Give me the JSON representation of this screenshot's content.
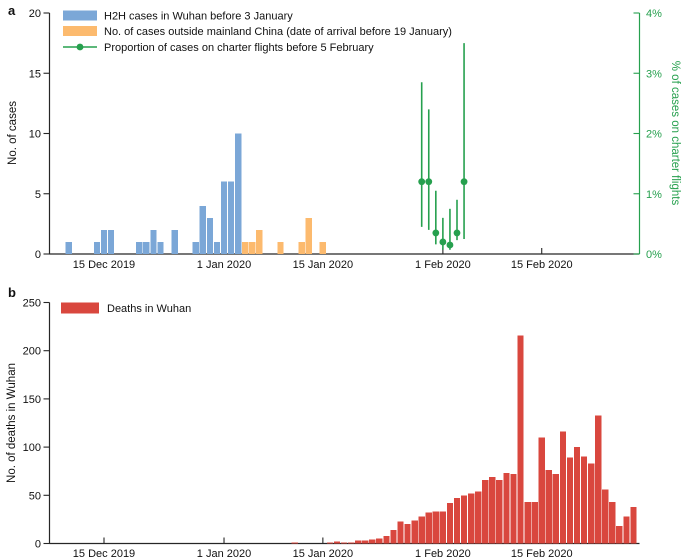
{
  "chart_data": [
    {
      "panel": "a",
      "type": "bar",
      "title": "",
      "xlabel": "",
      "ylabel": "No. of cases",
      "ylim": [
        0,
        20
      ],
      "yticks": [
        0,
        5,
        10,
        15,
        20
      ],
      "y2label": "% of cases on charter flights",
      "y2lim": [
        0,
        4
      ],
      "y2ticks": [
        "0%",
        "1%",
        "2%",
        "3%",
        "4%"
      ],
      "grid": false,
      "legend_position": "top-left-inside",
      "xticks": [
        {
          "date": "2019-12-15",
          "label": "15 Dec 2019"
        },
        {
          "date": "2020-01-01",
          "label": "1 Jan 2020"
        },
        {
          "date": "2020-01-15",
          "label": "15 Jan 2020"
        },
        {
          "date": "2020-02-01",
          "label": "1 Feb 2020"
        },
        {
          "date": "2020-02-15",
          "label": "15 Feb 2020"
        }
      ],
      "series": [
        {
          "name": "H2H cases in Wuhan before 3 January",
          "type": "bar",
          "color": "#7ba7d7",
          "points": [
            [
              "2019-12-10",
              1
            ],
            [
              "2019-12-14",
              1
            ],
            [
              "2019-12-15",
              2
            ],
            [
              "2019-12-16",
              2
            ],
            [
              "2019-12-20",
              1
            ],
            [
              "2019-12-21",
              1
            ],
            [
              "2019-12-22",
              2
            ],
            [
              "2019-12-23",
              1
            ],
            [
              "2019-12-25",
              2
            ],
            [
              "2019-12-28",
              1
            ],
            [
              "2019-12-29",
              4
            ],
            [
              "2019-12-30",
              3
            ],
            [
              "2019-12-31",
              1
            ],
            [
              "2020-01-01",
              6
            ],
            [
              "2020-01-02",
              6
            ],
            [
              "2020-01-03",
              10
            ]
          ]
        },
        {
          "name": "No. of cases outside mainland China (date of arrival before 19 January)",
          "type": "bar",
          "color": "#fcba6e",
          "points": [
            [
              "2020-01-04",
              1
            ],
            [
              "2020-01-05",
              1
            ],
            [
              "2020-01-06",
              2
            ],
            [
              "2020-01-09",
              1
            ],
            [
              "2020-01-12",
              1
            ],
            [
              "2020-01-13",
              3
            ],
            [
              "2020-01-15",
              1
            ]
          ]
        },
        {
          "name": "Proportion of cases on charter flights before 5 February",
          "type": "point-errorbar",
          "axis": "right",
          "unit": "percent",
          "color": "#26a04e",
          "points": [
            {
              "date": "2020-01-29",
              "value": 1.2,
              "lo": 0.45,
              "hi": 2.85
            },
            {
              "date": "2020-01-30",
              "value": 1.2,
              "lo": 0.4,
              "hi": 2.4
            },
            {
              "date": "2020-01-31",
              "value": 0.35,
              "lo": 0.16,
              "hi": 1.05
            },
            {
              "date": "2020-02-01",
              "value": 0.2,
              "lo": 0.07,
              "hi": 0.6
            },
            {
              "date": "2020-02-02",
              "value": 0.15,
              "lo": 0.07,
              "hi": 0.75
            },
            {
              "date": "2020-02-03",
              "value": 0.35,
              "lo": 0.23,
              "hi": 0.9
            },
            {
              "date": "2020-02-04",
              "value": 1.2,
              "lo": 0.25,
              "hi": 3.5
            }
          ]
        }
      ]
    },
    {
      "panel": "b",
      "type": "bar",
      "title": "",
      "xlabel": "",
      "ylabel": "No. of deaths in Wuhan",
      "ylim": [
        0,
        250
      ],
      "yticks": [
        0,
        50,
        100,
        150,
        200,
        250
      ],
      "grid": false,
      "legend_position": "top-left-inside",
      "xticks": [
        {
          "date": "2019-12-15",
          "label": "15 Dec 2019"
        },
        {
          "date": "2020-01-01",
          "label": "1 Jan 2020"
        },
        {
          "date": "2020-01-15",
          "label": "15 Jan 2020"
        },
        {
          "date": "2020-02-01",
          "label": "1 Feb 2020"
        },
        {
          "date": "2020-02-15",
          "label": "15 Feb 2020"
        }
      ],
      "series": [
        {
          "name": "Deaths in Wuhan",
          "type": "bar",
          "color": "#d9473e",
          "points": [
            [
              "2020-01-11",
              1
            ],
            [
              "2020-01-16",
              1
            ],
            [
              "2020-01-17",
              2
            ],
            [
              "2020-01-18",
              1
            ],
            [
              "2020-01-19",
              1
            ],
            [
              "2020-01-20",
              3
            ],
            [
              "2020-01-21",
              3
            ],
            [
              "2020-01-22",
              4
            ],
            [
              "2020-01-23",
              5
            ],
            [
              "2020-01-24",
              8
            ],
            [
              "2020-01-25",
              14
            ],
            [
              "2020-01-26",
              23
            ],
            [
              "2020-01-27",
              20
            ],
            [
              "2020-01-28",
              24
            ],
            [
              "2020-01-29",
              28
            ],
            [
              "2020-01-30",
              32
            ],
            [
              "2020-01-31",
              33
            ],
            [
              "2020-02-01",
              33
            ],
            [
              "2020-02-02",
              42
            ],
            [
              "2020-02-03",
              47
            ],
            [
              "2020-02-04",
              50
            ],
            [
              "2020-02-05",
              52
            ],
            [
              "2020-02-06",
              54
            ],
            [
              "2020-02-07",
              66
            ],
            [
              "2020-02-08",
              69
            ],
            [
              "2020-02-09",
              66
            ],
            [
              "2020-02-10",
              73
            ],
            [
              "2020-02-11",
              72
            ],
            [
              "2020-02-12",
              216
            ],
            [
              "2020-02-13",
              43
            ],
            [
              "2020-02-14",
              43
            ],
            [
              "2020-02-15",
              110
            ],
            [
              "2020-02-16",
              76
            ],
            [
              "2020-02-17",
              72
            ],
            [
              "2020-02-18",
              116
            ],
            [
              "2020-02-19",
              89
            ],
            [
              "2020-02-20",
              100
            ],
            [
              "2020-02-21",
              90
            ],
            [
              "2020-02-22",
              83
            ],
            [
              "2020-02-23",
              133
            ],
            [
              "2020-02-24",
              56
            ],
            [
              "2020-02-25",
              43
            ],
            [
              "2020-02-26",
              18
            ],
            [
              "2020-02-27",
              28
            ],
            [
              "2020-02-28",
              38
            ]
          ]
        }
      ]
    }
  ],
  "colors": {
    "blue_bar": "#7ba7d7",
    "orange_bar": "#fcba6e",
    "green_point": "#26a04e",
    "red_bar": "#d9473e",
    "axis": "#262626",
    "text": "#111111"
  }
}
